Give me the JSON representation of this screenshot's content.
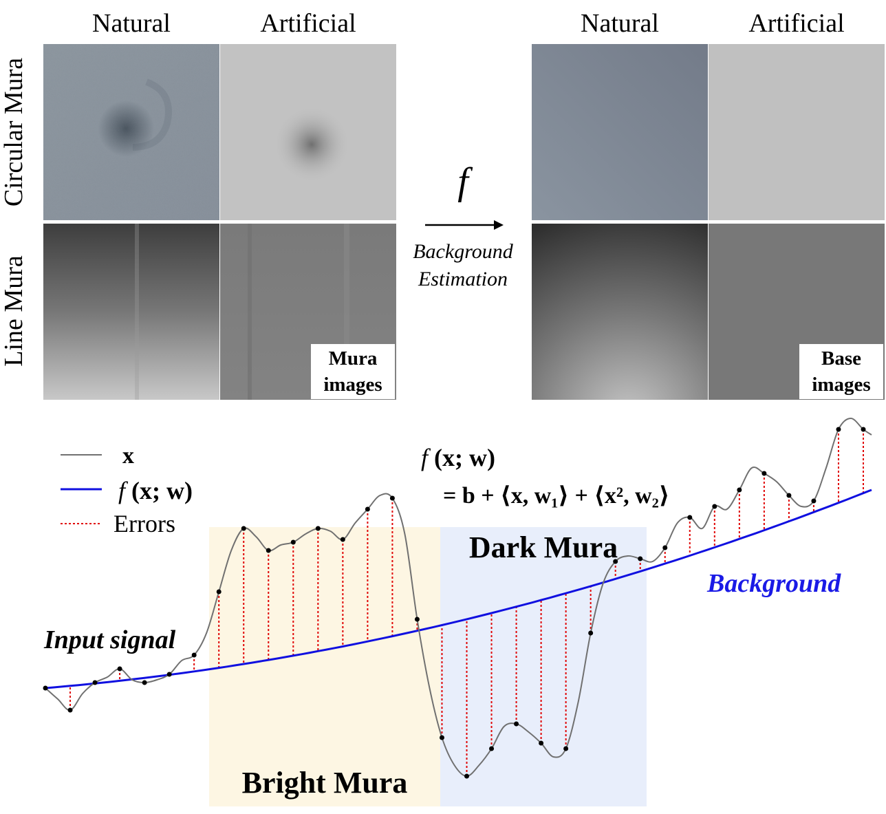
{
  "top": {
    "left_columns": [
      "Natural",
      "Artificial"
    ],
    "right_columns": [
      "Natural",
      "Artificial"
    ],
    "rows": [
      "Circular Mura",
      "Line Mura"
    ],
    "mura_tag": [
      "Mura",
      "images"
    ],
    "base_tag": [
      "Base",
      "images"
    ],
    "function_symbol": "f",
    "arrow_caption": [
      "Background",
      "Estimation"
    ],
    "colors": {
      "circular_natural": "#8a939d",
      "circular_artificial": "#c2c2c2",
      "line_natural": "#6e6e6e",
      "line_artificial": "#7a7a7a",
      "base_circular_natural": "#7e8896",
      "base_circular_artificial": "#c0c0c0",
      "base_line_artificial": "#787878"
    }
  },
  "bottom": {
    "legend": {
      "signal": "x",
      "fit_f": "f",
      "fit_args": "(x; w)",
      "errors": "Errors"
    },
    "equation": {
      "lhs_f": "f",
      "lhs_args": "(x; w)",
      "rhs": "= b + ⟨x, w₁⟩ + ⟨x², w₂⟩"
    },
    "labels": {
      "bright": "Bright Mura",
      "dark": "Dark Mura",
      "input": "Input signal",
      "background": "Background"
    },
    "colors": {
      "signal": "#707070",
      "fit": "#1010e0",
      "errors": "#e00000",
      "bright_region": "#fdf6e3",
      "dark_region": "#e8eefb"
    },
    "chart_data": {
      "type": "line",
      "series": [
        {
          "x": [
            0,
            1.5,
            3,
            4.5,
            6,
            7.5,
            9,
            10.5,
            12,
            13.5,
            15,
            16.5,
            18,
            19.5,
            21,
            22.5,
            24,
            25.5,
            27,
            28.5,
            30,
            31.5,
            33,
            34.5,
            36,
            37.5,
            39,
            40.5,
            42,
            43.5,
            45,
            46.5,
            48,
            49.5,
            51,
            52.5,
            54,
            55.5,
            57,
            58.5,
            60,
            61.5,
            63,
            64.5,
            66,
            67.5,
            69,
            70.5,
            72,
            73.5,
            75,
            76.5,
            78,
            79.5,
            81,
            82.5,
            84,
            85.5,
            87,
            88.5,
            90,
            91.5,
            93,
            94.5,
            96,
            97.5,
            99,
            100
          ],
          "y": [
            10,
            6,
            2,
            8,
            12,
            14,
            17,
            13,
            12,
            13,
            15,
            20,
            22,
            30,
            45,
            60,
            68,
            65,
            60,
            62,
            63,
            66,
            68,
            67,
            64,
            70,
            75,
            80,
            79,
            66,
            35,
            10,
            -8,
            -18,
            -22,
            -18,
            -12,
            -4,
            -3,
            -6,
            -10,
            -15,
            -12,
            5,
            30,
            48,
            56,
            58,
            57,
            56,
            61,
            70,
            72,
            68,
            76,
            75,
            82,
            90,
            88,
            85,
            80,
            76,
            78,
            90,
            104,
            108,
            104,
            102
          ],
          "smoothing": "curve"
        },
        {
          "x": [
            0,
            100
          ],
          "quadratic_fit": true,
          "y": [
            10,
            82
          ]
        }
      ]
    }
  }
}
